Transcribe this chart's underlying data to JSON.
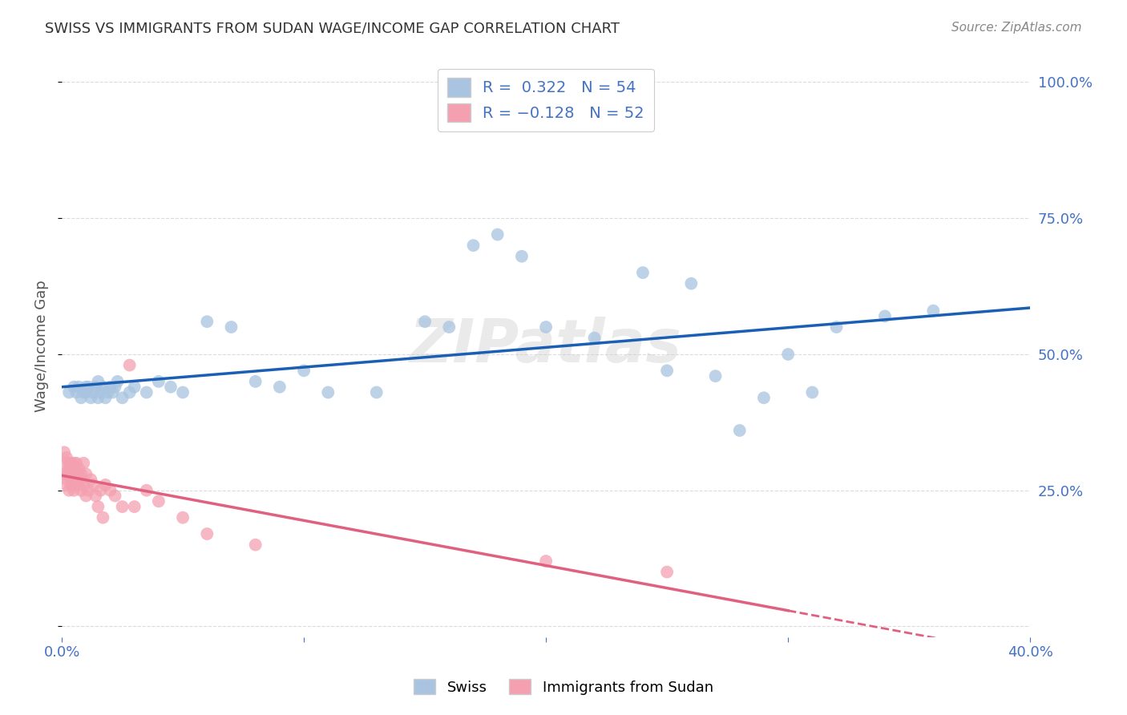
{
  "title": "SWISS VS IMMIGRANTS FROM SUDAN WAGE/INCOME GAP CORRELATION CHART",
  "source": "Source: ZipAtlas.com",
  "ylabel": "Wage/Income Gap",
  "xlim": [
    0.0,
    0.4
  ],
  "ylim": [
    -0.02,
    1.05
  ],
  "yticks": [
    0.0,
    0.25,
    0.5,
    0.75,
    1.0
  ],
  "ytick_labels_left": [
    "",
    "",
    "",
    "",
    ""
  ],
  "ytick_labels_right": [
    "",
    "25.0%",
    "50.0%",
    "75.0%",
    "100.0%"
  ],
  "xtick_positions": [
    0.0,
    0.1,
    0.2,
    0.3,
    0.4
  ],
  "xtick_labels": [
    "0.0%",
    "",
    "",
    "",
    "40.0%"
  ],
  "blue_color": "#a8c4e0",
  "pink_color": "#f4a0b0",
  "blue_line_color": "#1a5fb4",
  "pink_line_color": "#e06080",
  "swiss_x": [
    0.003,
    0.005,
    0.006,
    0.007,
    0.008,
    0.009,
    0.01,
    0.01,
    0.011,
    0.012,
    0.013,
    0.014,
    0.015,
    0.015,
    0.016,
    0.017,
    0.018,
    0.019,
    0.02,
    0.021,
    0.022,
    0.023,
    0.025,
    0.028,
    0.03,
    0.035,
    0.04,
    0.045,
    0.05,
    0.06,
    0.07,
    0.08,
    0.09,
    0.1,
    0.11,
    0.13,
    0.15,
    0.16,
    0.17,
    0.18,
    0.19,
    0.2,
    0.22,
    0.24,
    0.25,
    0.26,
    0.27,
    0.28,
    0.29,
    0.3,
    0.31,
    0.32,
    0.34,
    0.36
  ],
  "swiss_y": [
    0.43,
    0.44,
    0.43,
    0.44,
    0.42,
    0.43,
    0.44,
    0.43,
    0.44,
    0.42,
    0.43,
    0.44,
    0.42,
    0.45,
    0.43,
    0.44,
    0.42,
    0.43,
    0.44,
    0.43,
    0.44,
    0.45,
    0.42,
    0.43,
    0.44,
    0.43,
    0.45,
    0.44,
    0.43,
    0.56,
    0.55,
    0.45,
    0.44,
    0.47,
    0.43,
    0.43,
    0.56,
    0.55,
    0.7,
    0.72,
    0.68,
    0.55,
    0.53,
    0.65,
    0.47,
    0.63,
    0.46,
    0.36,
    0.42,
    0.5,
    0.43,
    0.55,
    0.57,
    0.58
  ],
  "sudan_x": [
    0.001,
    0.001,
    0.001,
    0.002,
    0.002,
    0.002,
    0.002,
    0.003,
    0.003,
    0.003,
    0.003,
    0.004,
    0.004,
    0.004,
    0.004,
    0.005,
    0.005,
    0.005,
    0.005,
    0.006,
    0.006,
    0.006,
    0.007,
    0.007,
    0.007,
    0.008,
    0.008,
    0.008,
    0.009,
    0.009,
    0.01,
    0.01,
    0.011,
    0.012,
    0.013,
    0.014,
    0.015,
    0.016,
    0.017,
    0.018,
    0.02,
    0.022,
    0.025,
    0.028,
    0.03,
    0.035,
    0.04,
    0.05,
    0.06,
    0.08,
    0.2,
    0.25
  ],
  "sudan_y": [
    0.3,
    0.28,
    0.32,
    0.26,
    0.28,
    0.31,
    0.27,
    0.29,
    0.3,
    0.28,
    0.25,
    0.27,
    0.3,
    0.28,
    0.26,
    0.29,
    0.27,
    0.3,
    0.25,
    0.28,
    0.3,
    0.27,
    0.28,
    0.26,
    0.29,
    0.28,
    0.25,
    0.27,
    0.3,
    0.26,
    0.24,
    0.28,
    0.25,
    0.27,
    0.26,
    0.24,
    0.22,
    0.25,
    0.2,
    0.26,
    0.25,
    0.24,
    0.22,
    0.48,
    0.22,
    0.25,
    0.23,
    0.2,
    0.17,
    0.15,
    0.12,
    0.1
  ],
  "watermark_text": "ZIPatlas",
  "background_color": "#ffffff",
  "grid_color": "#cccccc",
  "title_color": "#333333",
  "tick_color": "#4472c4",
  "ylabel_color": "#555555"
}
